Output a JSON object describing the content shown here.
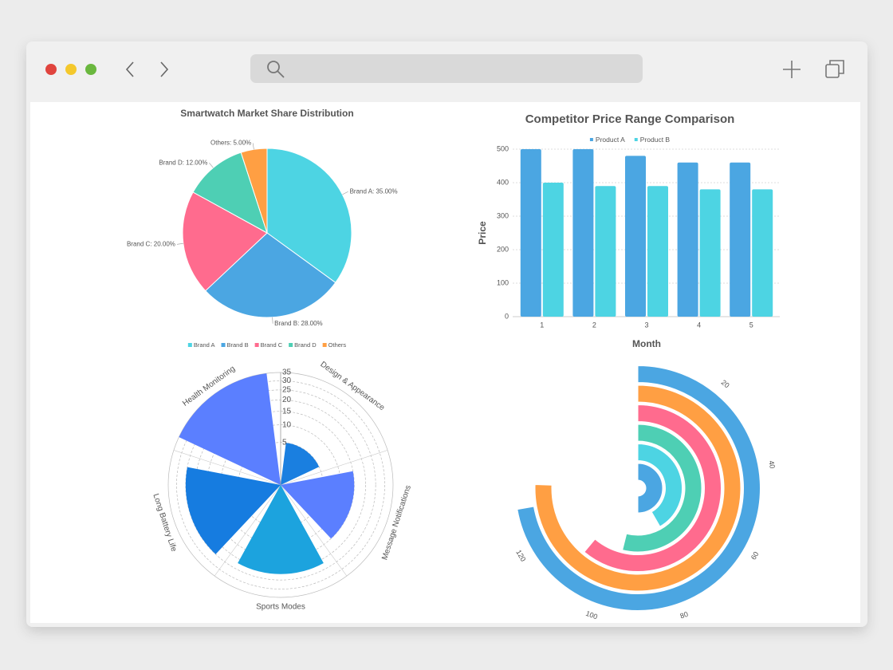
{
  "chart_data": [
    {
      "type": "pie",
      "title": "Smartwatch Market Share Distribution",
      "categories": [
        "Brand A",
        "Brand B",
        "Brand C",
        "Brand D",
        "Others"
      ],
      "values": [
        35,
        28,
        20,
        12,
        5
      ],
      "value_labels": [
        "Brand A: 35.00%",
        "Brand B: 28.00%",
        "Brand C: 20.00%",
        "Brand D: 12.00%",
        "Others: 5.00%"
      ],
      "colors": [
        "#4dd4e3",
        "#4ba6e2",
        "#ff6b8e",
        "#4ecfb4",
        "#ff9f43"
      ],
      "legend": "bottom"
    },
    {
      "type": "bar",
      "title": "Competitor Price Range Comparison",
      "x_label": "Month",
      "y_label": "Price",
      "categories": [
        "1",
        "2",
        "3",
        "4",
        "5"
      ],
      "series": [
        {
          "name": "Product A",
          "color": "#4ba6e2",
          "values": [
            500,
            500,
            480,
            460,
            460
          ]
        },
        {
          "name": "Product B",
          "color": "#4dd4e3",
          "values": [
            400,
            390,
            390,
            380,
            380
          ]
        }
      ],
      "ylim": [
        0,
        500
      ],
      "yticks": [
        0,
        100,
        200,
        300,
        400,
        500
      ],
      "grid": true,
      "legend": "top"
    },
    {
      "type": "polar-bar",
      "categories": [
        "Health Monitoring",
        "Design & Appearance",
        "Message Notifications",
        "Sports Modes",
        "Long Battery Life"
      ],
      "values": [
        35,
        5,
        15,
        22,
        25
      ],
      "colors": [
        "#5b7fff",
        "#1a7fe0",
        "#5b7fff",
        "#1ca3de",
        "#167ce0"
      ],
      "rlim": [
        0,
        35
      ],
      "rticks": [
        5,
        10,
        15,
        20,
        25,
        30,
        35
      ],
      "radial_scale": "sqrt"
    },
    {
      "type": "radial-bar",
      "values": [
        90,
        75,
        97,
        110,
        136,
        130
      ],
      "colors": [
        "#4ba6e2",
        "#4dd4e3",
        "#4ecfb4",
        "#ff6b8e",
        "#ff9f43",
        "#4ba6e2"
      ],
      "alim": [
        0,
        180
      ],
      "aticks": [
        20,
        40,
        60,
        80,
        100,
        120
      ]
    }
  ]
}
